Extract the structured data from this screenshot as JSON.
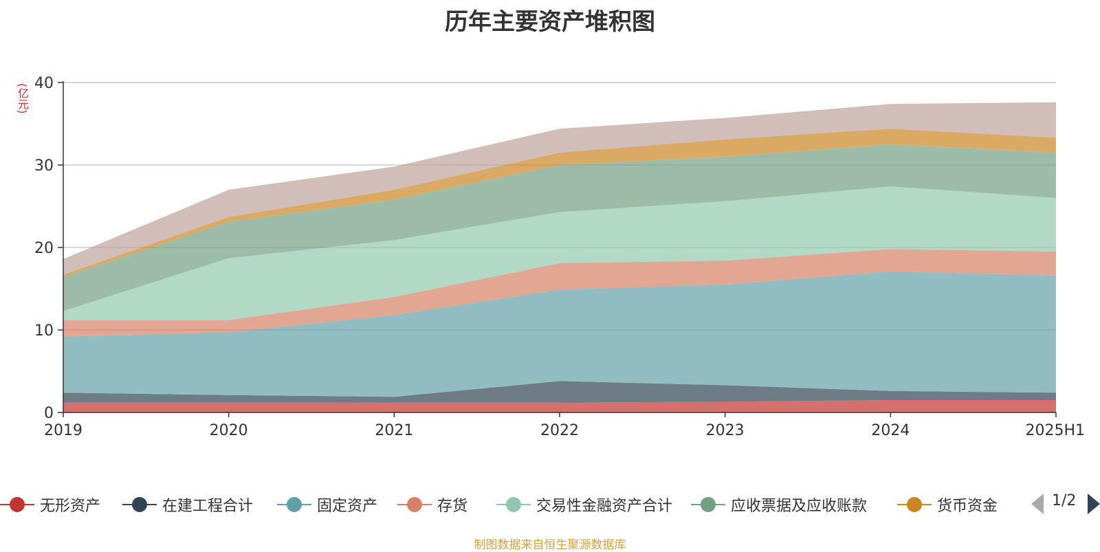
{
  "chart_data": {
    "type": "area",
    "stacked": true,
    "title": "历年主要资产堆积图",
    "ylabel": "(亿元)",
    "xlabel": "",
    "categories": [
      "2019",
      "2020",
      "2021",
      "2022",
      "2023",
      "2024",
      "2025H1"
    ],
    "ylim": [
      0,
      40
    ],
    "yticks": [
      0,
      10,
      20,
      30,
      40
    ],
    "grid": true,
    "legend_position": "bottom",
    "series": [
      {
        "name": "无形资产",
        "color": "#c23531",
        "values": [
          1.2,
          1.2,
          1.2,
          1.2,
          1.3,
          1.5,
          1.5
        ]
      },
      {
        "name": "在建工程合计",
        "color": "#2f4554",
        "values": [
          1.2,
          0.9,
          0.7,
          2.6,
          2.0,
          1.1,
          0.9
        ]
      },
      {
        "name": "固定资产",
        "color": "#61a0a8",
        "values": [
          6.8,
          7.6,
          9.9,
          11.1,
          12.2,
          14.5,
          14.2
        ]
      },
      {
        "name": "存货",
        "color": "#d48265",
        "values": [
          2.0,
          1.5,
          2.2,
          3.2,
          2.9,
          2.7,
          2.9
        ]
      },
      {
        "name": "交易性金融资产合计",
        "color": "#91c7ae",
        "values": [
          1.1,
          7.5,
          6.9,
          6.2,
          7.2,
          7.6,
          6.5
        ]
      },
      {
        "name": "应收票据及应收账款",
        "color": "#749f83",
        "values": [
          4.1,
          4.4,
          4.9,
          5.7,
          5.4,
          5.1,
          5.5
        ]
      },
      {
        "name": "货币资金",
        "color": "#ca8622",
        "values": [
          0.3,
          0.6,
          1.2,
          1.5,
          2.1,
          1.9,
          1.8
        ]
      },
      {
        "name": "",
        "color": "#bda29a",
        "values": [
          1.9,
          3.3,
          2.8,
          2.9,
          2.6,
          3.0,
          4.3
        ]
      }
    ]
  },
  "legend": {
    "items": [
      {
        "label": "无形资产",
        "color": "#c23531"
      },
      {
        "label": "在建工程合计",
        "color": "#2f4554"
      },
      {
        "label": "固定资产",
        "color": "#61a0a8"
      },
      {
        "label": "存货",
        "color": "#d48265"
      },
      {
        "label": "交易性金融资产合计",
        "color": "#91c7ae"
      },
      {
        "label": "应收票据及应收账款",
        "color": "#749f83"
      },
      {
        "label": "货币资金",
        "color": "#ca8622"
      }
    ],
    "page": "1/2"
  },
  "footer": {
    "source": "制图数据来自恒生聚源数据库"
  }
}
